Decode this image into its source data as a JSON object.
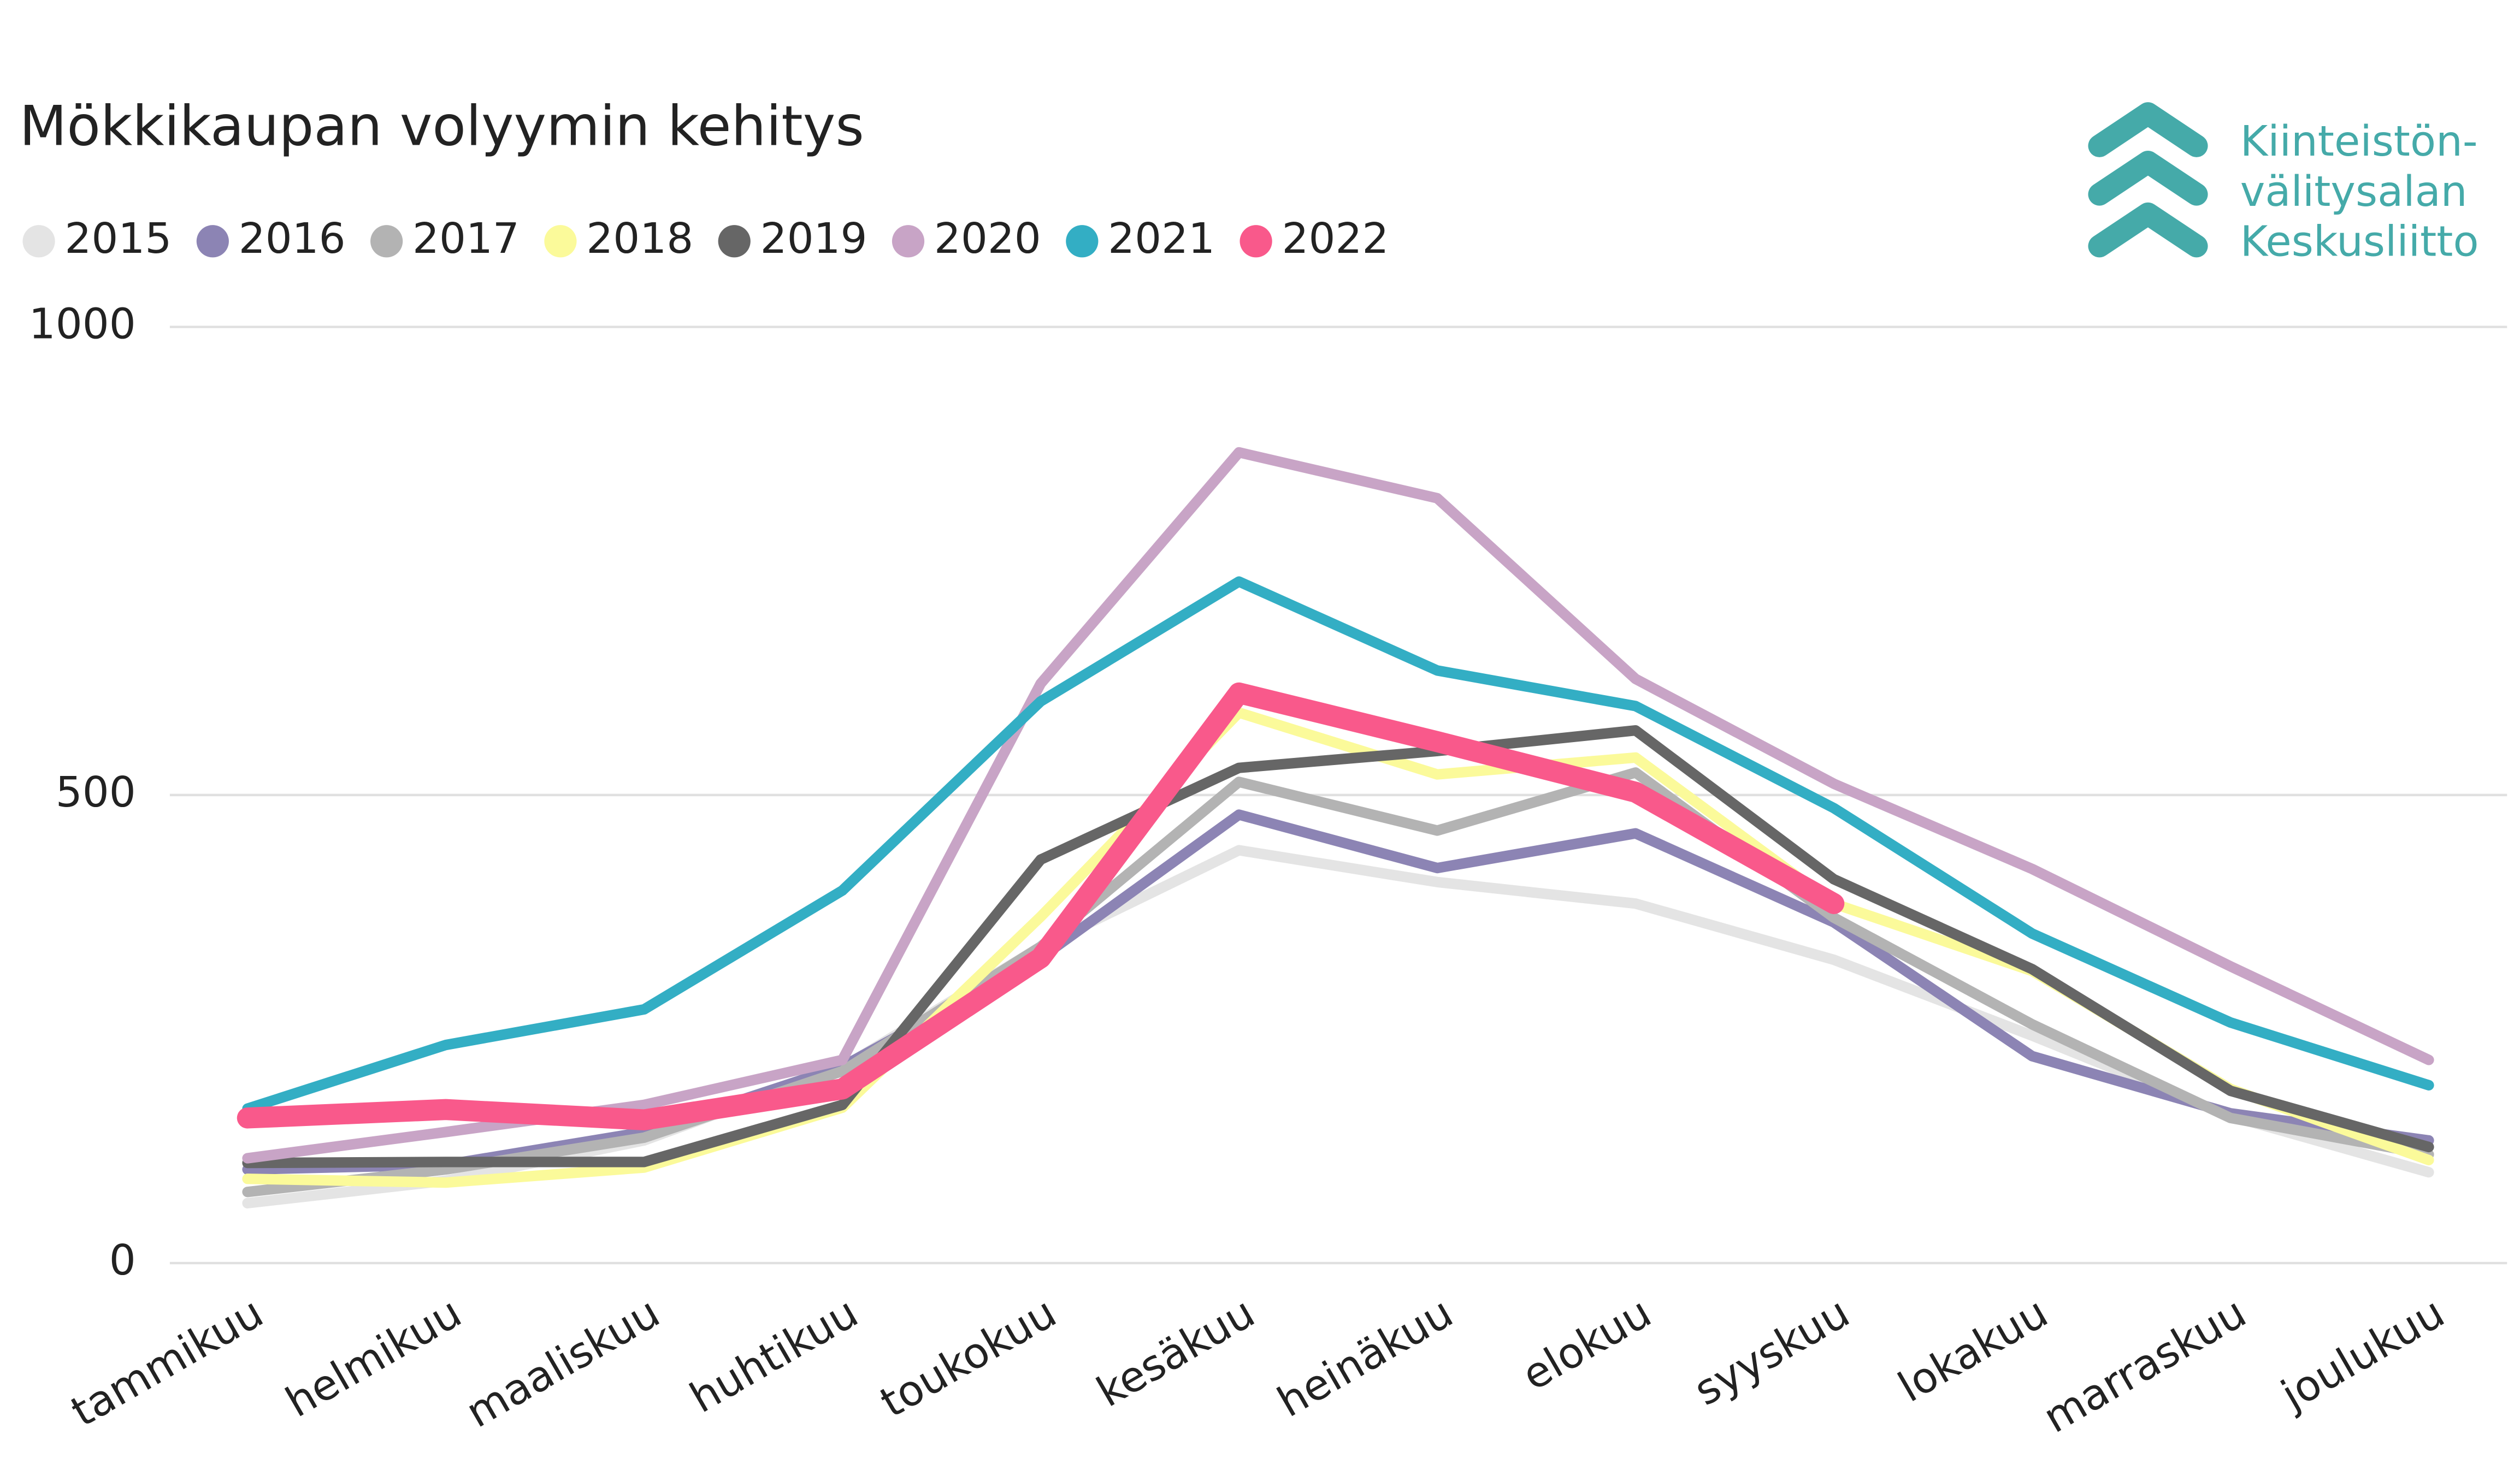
{
  "chart_data": {
    "type": "line",
    "title": "Mökkikaupan volyymin kehitys",
    "logo": [
      "Kiinteistön-",
      "välitysalan",
      "Keskusliitto"
    ],
    "categories": [
      "tammikuu",
      "helmikuu",
      "maaliskuu",
      "huhtikuu",
      "toukokuu",
      "kesäkuu",
      "heinäkuu",
      "elokuu",
      "syyskuu",
      "lokakuu",
      "marraskuu",
      "joulukuu"
    ],
    "ylim": [
      0,
      1000
    ],
    "yticks": [
      0,
      500,
      1000
    ],
    "grid": true,
    "legend": "top-left",
    "series": [
      {
        "name": "2015",
        "color": "#e4e4e4",
        "values": [
          64,
          88,
          131,
          209,
          338,
          441,
          407,
          384,
          324,
          243,
          157,
          97
        ]
      },
      {
        "name": "2016",
        "color": "#8c84b4",
        "values": [
          100,
          105,
          140,
          210,
          326,
          479,
          422,
          459,
          364,
          221,
          160,
          131
        ]
      },
      {
        "name": "2017",
        "color": "#b3b3b3",
        "values": [
          76,
          100,
          134,
          205,
          338,
          514,
          462,
          524,
          369,
          255,
          155,
          116
        ]
      },
      {
        "name": "2018",
        "color": "#fbfa9a",
        "values": [
          90,
          86,
          102,
          166,
          370,
          588,
          522,
          540,
          384,
          312,
          186,
          110
        ]
      },
      {
        "name": "2019",
        "color": "#666666",
        "values": [
          107,
          108,
          108,
          169,
          431,
          529,
          547,
          569,
          410,
          314,
          184,
          124
        ]
      },
      {
        "name": "2020",
        "color": "#c8a4c6",
        "values": [
          112,
          140,
          169,
          217,
          619,
          866,
          817,
          624,
          512,
          421,
          317,
          217
        ]
      },
      {
        "name": "2021",
        "color": "#33aec4",
        "values": [
          165,
          233,
          271,
          398,
          600,
          728,
          633,
          595,
          486,
          352,
          257,
          190
        ]
      },
      {
        "name": "2022",
        "color": "#f9598b",
        "values": [
          155,
          164,
          153,
          186,
          326,
          609,
          557,
          503,
          384,
          null,
          null,
          null
        ]
      }
    ]
  }
}
